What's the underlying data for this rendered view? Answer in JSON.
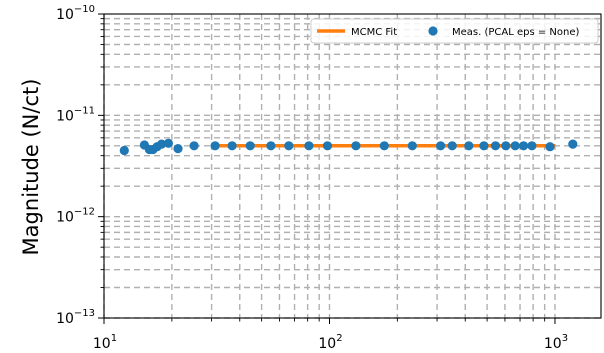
{
  "chart_data": {
    "type": "scatter",
    "title": "",
    "xlabel": "",
    "ylabel": "Magnitude (N/ct)",
    "xscale": "log",
    "yscale": "log",
    "xlim": [
      10,
      1600
    ],
    "ylim": [
      1e-13,
      1e-10
    ],
    "grid": true,
    "grid_style": "dashed, major and minor",
    "legend_position": "top-right",
    "xticks": [
      {
        "value": 10,
        "base": "10",
        "exp": "1"
      },
      {
        "value": 100,
        "base": "10",
        "exp": "2"
      },
      {
        "value": 1000,
        "base": "10",
        "exp": "3"
      }
    ],
    "yticks": [
      {
        "value": 1e-13,
        "base": "10",
        "exp": "−13"
      },
      {
        "value": 1e-12,
        "base": "10",
        "exp": "−12"
      },
      {
        "value": 1e-11,
        "base": "10",
        "exp": "−11"
      },
      {
        "value": 1e-10,
        "base": "10",
        "exp": "−10"
      }
    ],
    "series": [
      {
        "name": "MCMC Fit",
        "kind": "line",
        "color": "#ff7f0e",
        "x": [
          30,
          1000
        ],
        "y": [
          5e-12,
          5e-12
        ]
      },
      {
        "name": "Meas. (PCAL eps = None)",
        "kind": "scatter",
        "color": "#1f77b4",
        "x": [
          12.3,
          15.1,
          15.9,
          16.5,
          17.2,
          18.0,
          19.3,
          21.3,
          25.1,
          31.1,
          37.0,
          44.5,
          55.0,
          66.0,
          81.0,
          98.0,
          131.0,
          175.0,
          233.0,
          311.0,
          350.0,
          415.0,
          484.0,
          545.0,
          605.0,
          666.0,
          726.0,
          790.0,
          950.0,
          1200.0
        ],
        "y": [
          4.5e-12,
          5.1e-12,
          4.6e-12,
          4.6e-12,
          4.9e-12,
          5.2e-12,
          5.3e-12,
          4.7e-12,
          5e-12,
          5e-12,
          5e-12,
          5e-12,
          5e-12,
          5e-12,
          5e-12,
          5e-12,
          5e-12,
          5e-12,
          5e-12,
          5e-12,
          5e-12,
          5e-12,
          5e-12,
          5e-12,
          5e-12,
          5e-12,
          5e-12,
          5e-12,
          4.9e-12,
          5.2e-12
        ]
      }
    ]
  }
}
